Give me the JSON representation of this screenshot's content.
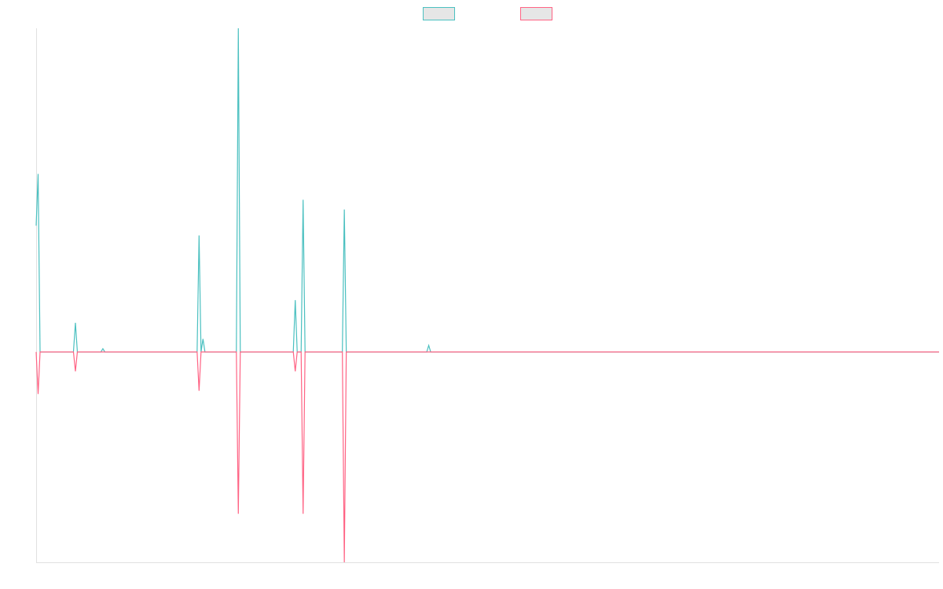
{
  "chart_data": {
    "type": "line",
    "x": [
      0,
      1,
      2,
      19,
      20,
      21,
      33,
      34,
      35,
      82,
      83,
      84,
      85,
      86,
      102,
      103,
      104,
      131,
      132,
      133,
      135,
      136,
      137,
      156,
      157,
      158,
      199,
      200,
      201,
      460
    ],
    "xlim": [
      0,
      460
    ],
    "ylim": [
      -65,
      100
    ],
    "series": [
      {
        "color": "#4bc0c0",
        "values": [
          39,
          55,
          0,
          0,
          9,
          0,
          0,
          1,
          0,
          0,
          36,
          0,
          4,
          0,
          0,
          100,
          0,
          0,
          16,
          0,
          0,
          47,
          0,
          0,
          44,
          0,
          0,
          2,
          0,
          0
        ]
      },
      {
        "color": "#ff6384",
        "values": [
          0,
          -13,
          0,
          0,
          -6,
          0,
          0,
          0,
          0,
          0,
          -12,
          0,
          0,
          0,
          0,
          -50,
          0,
          0,
          -6,
          0,
          0,
          -50,
          0,
          0,
          -65,
          0,
          0,
          0,
          0,
          0
        ]
      }
    ]
  }
}
